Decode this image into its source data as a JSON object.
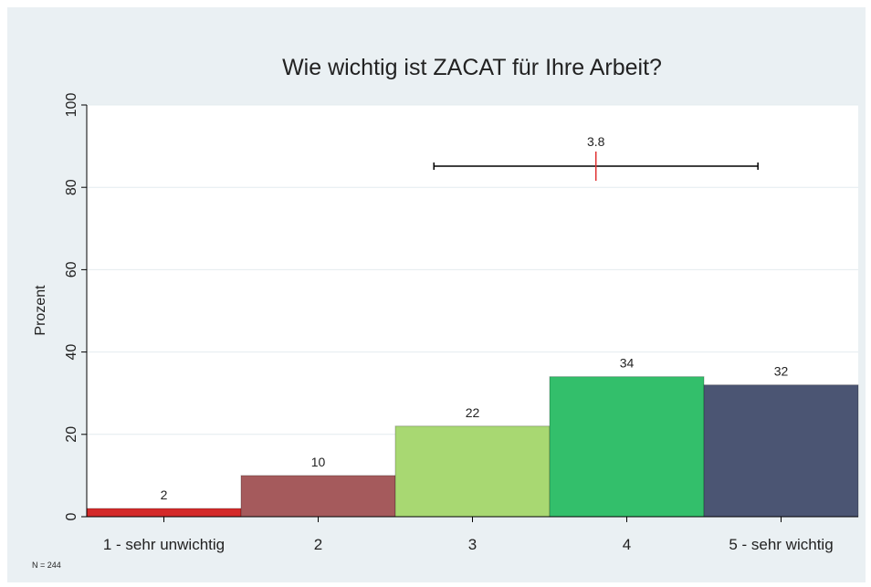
{
  "chart_data": {
    "type": "bar",
    "title": "Wie wichtig ist ZACAT für Ihre Arbeit?",
    "y_label": "Prozent",
    "categories": [
      "1 - sehr unwichtig",
      "2",
      "3",
      "4",
      "5 - sehr wichtig"
    ],
    "values": [
      2,
      10,
      22,
      34,
      32
    ],
    "colors": [
      "#d42a2a",
      "#a55a5c",
      "#a8d872",
      "#33bf6b",
      "#4b5573"
    ],
    "ylim": [
      0,
      100
    ],
    "yticks": [
      0,
      20,
      40,
      60,
      80,
      100
    ],
    "grid": true,
    "mean": {
      "value": 3.8,
      "error": 1.05,
      "color": "#e03030"
    },
    "note": "N = 244"
  }
}
